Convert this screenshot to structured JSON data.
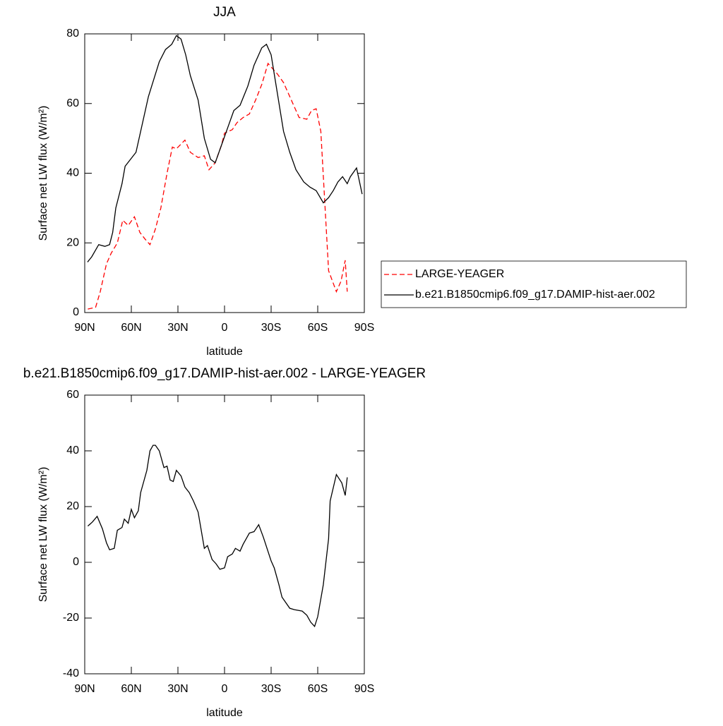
{
  "chart_data": [
    {
      "type": "line",
      "title": "JJA",
      "xlabel": "latitude",
      "ylabel": "Surface net LW flux (W/m²)",
      "xlim": [
        90,
        -90
      ],
      "ylim": [
        0,
        80
      ],
      "xticks": [
        {
          "value": 90,
          "label": "90N"
        },
        {
          "value": 60,
          "label": "60N"
        },
        {
          "value": 30,
          "label": "30N"
        },
        0,
        {
          "value": -30,
          "label": "30S"
        },
        {
          "value": -60,
          "label": "60S"
        },
        {
          "value": -90,
          "label": "90S"
        }
      ],
      "yticks": [
        0,
        20,
        40,
        60,
        80
      ],
      "legend": "right",
      "series": [
        {
          "name": "LARGE-YEAGER",
          "color": "#ff0000",
          "linestyle": "dashed",
          "x": [
            88,
            83,
            80,
            76,
            73,
            69,
            65.5,
            62,
            58,
            54.5,
            51,
            48,
            44.5,
            41,
            37,
            33.6,
            31,
            25.5,
            22,
            17,
            13,
            10,
            6,
            2,
            0,
            -5,
            -8,
            -12,
            -16,
            -20,
            -24,
            -28,
            -31,
            -34,
            -38,
            -43,
            -48,
            -53,
            -56,
            -59,
            -62,
            -64.5,
            -67,
            -72,
            -75,
            -77.7,
            -79
          ],
          "values": [
            1,
            1.5,
            6,
            14,
            17,
            20,
            26.5,
            25,
            27.5,
            23,
            21,
            19.5,
            24,
            30,
            40,
            47.5,
            47,
            49.5,
            46,
            44.5,
            45,
            41,
            43,
            48,
            51.5,
            52.5,
            54.5,
            56,
            57,
            61,
            65.5,
            71.5,
            70,
            68.5,
            66,
            61,
            56,
            55.5,
            58,
            58.5,
            52,
            32,
            12,
            6,
            9,
            15,
            6
          ]
        },
        {
          "name": "b.e21.B1850cmip6.f09_g17.DAMIP-hist-aer.002",
          "color": "#000000",
          "linestyle": "solid",
          "x": [
            88.2,
            85.5,
            81,
            77,
            74,
            72,
            70,
            66,
            64,
            60.5,
            57,
            54,
            49,
            45.5,
            42,
            38,
            34,
            31,
            28,
            25,
            22,
            17,
            13,
            9,
            6,
            2,
            -2,
            -6,
            -10,
            -15,
            -19,
            -24,
            -27,
            -30,
            -34,
            -38,
            -42,
            -46,
            -51,
            -55,
            -59,
            -63.6,
            -67,
            -70,
            -73,
            -76,
            -79,
            -81,
            -85,
            -88.6
          ],
          "values": [
            14.5,
            16,
            19.5,
            19,
            19.5,
            23,
            30,
            37,
            42,
            44,
            46,
            52,
            62,
            67,
            72,
            75.5,
            77,
            79.5,
            78.5,
            74,
            68,
            61,
            50,
            44,
            43,
            48,
            53,
            58,
            59.5,
            65,
            71,
            76,
            77,
            74,
            63,
            52,
            46,
            41,
            37.5,
            36,
            35,
            31.5,
            33,
            35,
            37.5,
            39,
            37,
            39,
            41.5,
            34
          ]
        }
      ]
    },
    {
      "type": "line",
      "title": "b.e21.B1850cmip6.f09_g17.DAMIP-hist-aer.002 - LARGE-YEAGER",
      "xlabel": "latitude",
      "ylabel": "Surface net LW flux (W/m²)",
      "xlim": [
        90,
        -90
      ],
      "ylim": [
        -40,
        60
      ],
      "xticks": [
        {
          "value": 90,
          "label": "90N"
        },
        {
          "value": 60,
          "label": "60N"
        },
        {
          "value": 30,
          "label": "30N"
        },
        0,
        {
          "value": -30,
          "label": "30S"
        },
        {
          "value": -60,
          "label": "60S"
        },
        {
          "value": -90,
          "label": "90S"
        }
      ],
      "yticks": [
        -40,
        -20,
        0,
        20,
        40,
        60
      ],
      "series": [
        {
          "color": "#000000",
          "linestyle": "solid",
          "x": [
            88,
            85,
            82,
            78.6,
            76,
            74,
            71,
            69,
            66,
            64.5,
            62,
            60,
            58,
            55.5,
            54,
            50,
            48,
            46,
            44.5,
            42,
            39,
            37,
            35,
            33,
            31,
            28,
            25.5,
            22.7,
            20,
            17,
            13,
            11,
            8,
            5.5,
            3,
            0,
            -2,
            -5,
            -7,
            -10,
            -12,
            -16,
            -19,
            -22,
            -25,
            -30,
            -32,
            -35,
            -37,
            -42,
            -45,
            -50,
            -53,
            -55.5,
            -58,
            -60,
            -63.6,
            -67,
            -68,
            -72,
            -75.5,
            -77.7,
            -79
          ],
          "values": [
            13,
            14.5,
            16.5,
            12,
            7,
            4.5,
            5,
            11.5,
            12.5,
            15.5,
            14,
            19,
            16,
            18.5,
            25,
            33,
            40,
            42,
            42,
            40,
            34,
            34.5,
            29.5,
            29,
            33,
            31,
            27,
            25,
            22,
            18,
            5,
            6,
            1,
            -0.5,
            -2.5,
            -2,
            2,
            3,
            5,
            4,
            6.5,
            10.5,
            11,
            13.5,
            9,
            0.5,
            -2,
            -8,
            -12.5,
            -16.5,
            -17,
            -17.5,
            -19,
            -21.5,
            -23,
            -19.5,
            -8,
            8.5,
            22,
            31.5,
            28.5,
            24,
            30.5
          ]
        }
      ]
    }
  ]
}
